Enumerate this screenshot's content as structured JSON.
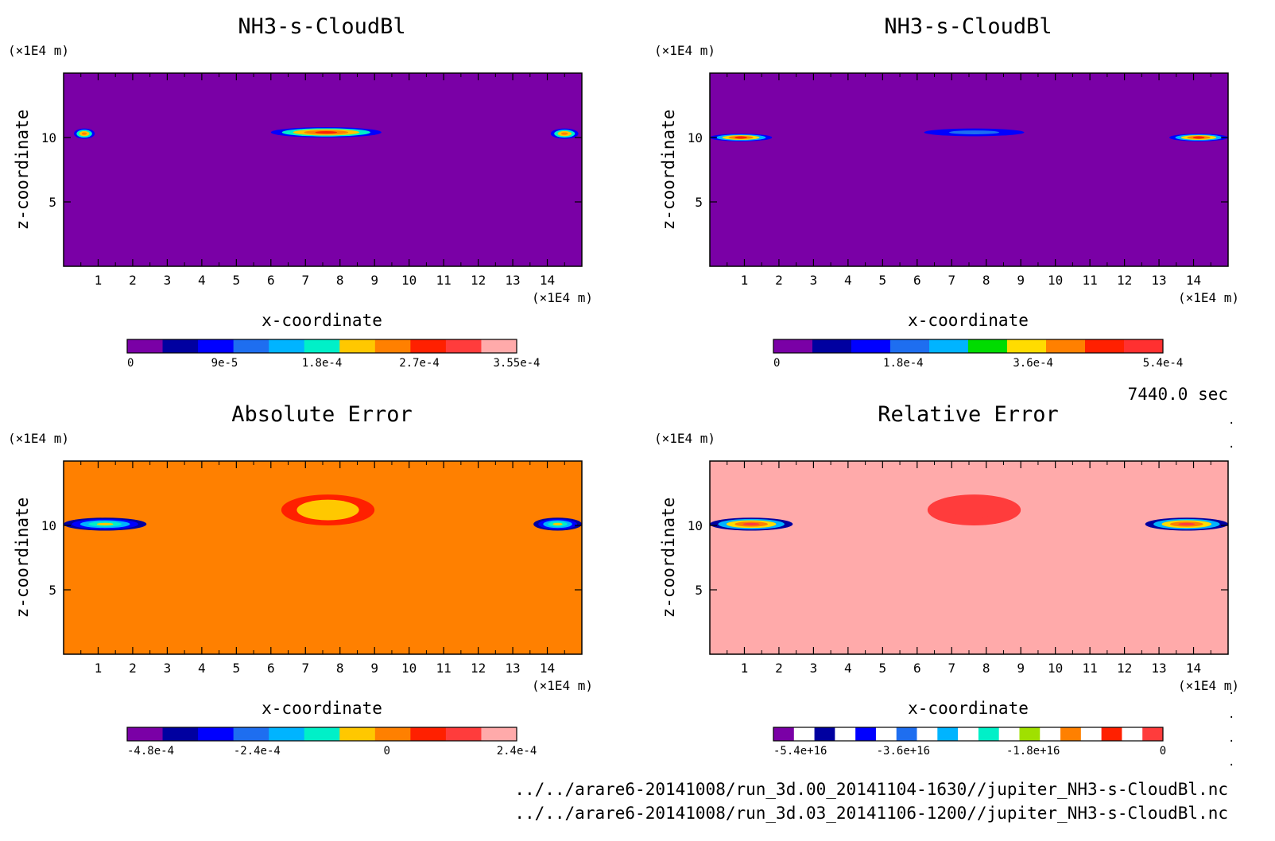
{
  "time_label": "7440.0 sec",
  "footer": {
    "file_1": "../../arare6-20141008/run_3d.00_20141104-1630//jupiter_NH3-s-CloudBl.nc",
    "file_2": "../../arare6-20141008/run_3d.03_20141106-1200//jupiter_NH3-s-CloudBl.nc"
  },
  "chart_data": [
    {
      "type": "heatmap",
      "title": "NH3-s-CloudBl",
      "xlabel": "x-coordinate",
      "ylabel": "z-coordinate",
      "x_unit": "(×1E4 m)",
      "y_unit": "(×1E4 m)",
      "xlim": [
        0,
        15
      ],
      "ylim": [
        0,
        15
      ],
      "x_ticks": [
        "1",
        "2",
        "3",
        "4",
        "5",
        "6",
        "7",
        "8",
        "9",
        "10",
        "11",
        "12",
        "13",
        "14"
      ],
      "y_ticks": [
        "5",
        "10"
      ],
      "background_color": "#7a00a6",
      "colorbar": {
        "colors": [
          "#7a00a6",
          "#0000a0",
          "#0000ff",
          "#1e6ef0",
          "#00b4ff",
          "#00f0c8",
          "#ffc800",
          "#ff8000",
          "#ff2000",
          "#ff3c3c",
          "#ffaaaa"
        ],
        "labels": [
          "0",
          "9e-5",
          "1.8e-4",
          "2.7e-4",
          "3.55e-4"
        ]
      },
      "features": [
        {
          "x": [
            0.3,
            0.9
          ],
          "z": [
            9.9,
            10.7
          ],
          "colors": [
            "#ff8000",
            "#ffc800",
            "#00f0c8",
            "#0000ff"
          ]
        },
        {
          "x": [
            6.0,
            9.2
          ],
          "z": [
            10.0,
            10.8
          ],
          "colors": [
            "#ff2000",
            "#ff8000",
            "#ffc800",
            "#00f0c8",
            "#0000ff"
          ]
        },
        {
          "x": [
            14.1,
            14.9
          ],
          "z": [
            9.9,
            10.7
          ],
          "colors": [
            "#ff8000",
            "#ffc800",
            "#00f0c8",
            "#0000ff"
          ]
        }
      ]
    },
    {
      "type": "heatmap",
      "title": "NH3-s-CloudBl",
      "xlabel": "x-coordinate",
      "ylabel": "z-coordinate",
      "x_unit": "(×1E4 m)",
      "y_unit": "(×1E4 m)",
      "xlim": [
        0,
        15
      ],
      "ylim": [
        0,
        15
      ],
      "x_ticks": [
        "1",
        "2",
        "3",
        "4",
        "5",
        "6",
        "7",
        "8",
        "9",
        "10",
        "11",
        "12",
        "13",
        "14"
      ],
      "y_ticks": [
        "5",
        "10"
      ],
      "background_color": "#7a00a6",
      "colorbar": {
        "colors": [
          "#7a00a6",
          "#0000a0",
          "#0000ff",
          "#1e6ef0",
          "#00b4ff",
          "#00dc00",
          "#ffdc00",
          "#ff8000",
          "#ff2000",
          "#ff3030"
        ],
        "labels": [
          "0",
          "1.8e-4",
          "3.6e-4",
          "5.4e-4"
        ]
      },
      "features": [
        {
          "x": [
            0.0,
            1.8
          ],
          "z": [
            9.7,
            10.3
          ],
          "colors": [
            "#ff2000",
            "#ff8000",
            "#ffdc00",
            "#00b4ff",
            "#0000ff"
          ]
        },
        {
          "x": [
            6.2,
            9.1
          ],
          "z": [
            10.1,
            10.7
          ],
          "colors": [
            "#1e6ef0",
            "#0000ff"
          ]
        },
        {
          "x": [
            13.3,
            15.0
          ],
          "z": [
            9.7,
            10.3
          ],
          "colors": [
            "#ff2000",
            "#ff8000",
            "#ffdc00",
            "#00b4ff",
            "#0000ff"
          ]
        }
      ]
    },
    {
      "type": "heatmap",
      "title": "Absolute Error",
      "xlabel": "x-coordinate",
      "ylabel": "z-coordinate",
      "x_unit": "(×1E4 m)",
      "y_unit": "(×1E4 m)",
      "xlim": [
        0,
        15
      ],
      "ylim": [
        0,
        15
      ],
      "x_ticks": [
        "1",
        "2",
        "3",
        "4",
        "5",
        "6",
        "7",
        "8",
        "9",
        "10",
        "11",
        "12",
        "13",
        "14"
      ],
      "y_ticks": [
        "5",
        "10"
      ],
      "background_color": "#ff8000",
      "colorbar": {
        "colors": [
          "#7a00a6",
          "#0000a0",
          "#0000ff",
          "#1e6ef0",
          "#00b4ff",
          "#00f0c8",
          "#ffc800",
          "#ff8000",
          "#ff2000",
          "#ff3c3c",
          "#ffaaaa"
        ],
        "labels": [
          "-4.8e-4",
          "-2.4e-4",
          "0",
          "2.4e-4"
        ]
      },
      "features": [
        {
          "x": [
            0.0,
            2.4
          ],
          "z": [
            9.6,
            10.6
          ],
          "colors": [
            "#ffc800",
            "#00f0c8",
            "#00b4ff",
            "#0000ff",
            "#0000a0"
          ]
        },
        {
          "x": [
            6.3,
            9.0
          ],
          "z": [
            10.0,
            12.4
          ],
          "colors": [
            "#ffc800",
            "#ffc800",
            "#ff2000"
          ]
        },
        {
          "x": [
            13.6,
            15.0
          ],
          "z": [
            9.6,
            10.6
          ],
          "colors": [
            "#ffc800",
            "#00f0c8",
            "#00b4ff",
            "#0000ff",
            "#0000a0"
          ]
        }
      ]
    },
    {
      "type": "heatmap",
      "title": "Relative Error",
      "xlabel": "x-coordinate",
      "ylabel": "z-coordinate",
      "x_unit": "(×1E4 m)",
      "y_unit": "(×1E4 m)",
      "xlim": [
        0,
        15
      ],
      "ylim": [
        0,
        15
      ],
      "x_ticks": [
        "1",
        "2",
        "3",
        "4",
        "5",
        "6",
        "7",
        "8",
        "9",
        "10",
        "11",
        "12",
        "13",
        "14"
      ],
      "y_ticks": [
        "5",
        "10"
      ],
      "background_color": "#ffaaaa",
      "colorbar": {
        "colors": [
          "#7a00a6",
          "#ffffff",
          "#0000a0",
          "#ffffff",
          "#0000ff",
          "#ffffff",
          "#1e6ef0",
          "#ffffff",
          "#00b4ff",
          "#ffffff",
          "#00f0c8",
          "#ffffff",
          "#a0e000",
          "#ffffff",
          "#ff8000",
          "#ffffff",
          "#ff2000",
          "#ffffff",
          "#ff3c3c"
        ],
        "labels": [
          "-5.4e+16",
          "-3.6e+16",
          "-1.8e+16",
          "0"
        ]
      },
      "features": [
        {
          "x": [
            0.0,
            2.4
          ],
          "z": [
            9.6,
            10.6
          ],
          "colors": [
            "#ff3c3c",
            "#ff8000",
            "#ffdc00",
            "#00b4ff",
            "#0000a0"
          ]
        },
        {
          "x": [
            6.3,
            9.0
          ],
          "z": [
            10.0,
            12.4
          ],
          "colors": [
            "#ff3c3c",
            "#ff3c3c"
          ]
        },
        {
          "x": [
            12.6,
            15.0
          ],
          "z": [
            9.6,
            10.6
          ],
          "colors": [
            "#ff3c3c",
            "#ff8000",
            "#ffdc00",
            "#00b4ff",
            "#0000a0"
          ]
        }
      ]
    }
  ]
}
